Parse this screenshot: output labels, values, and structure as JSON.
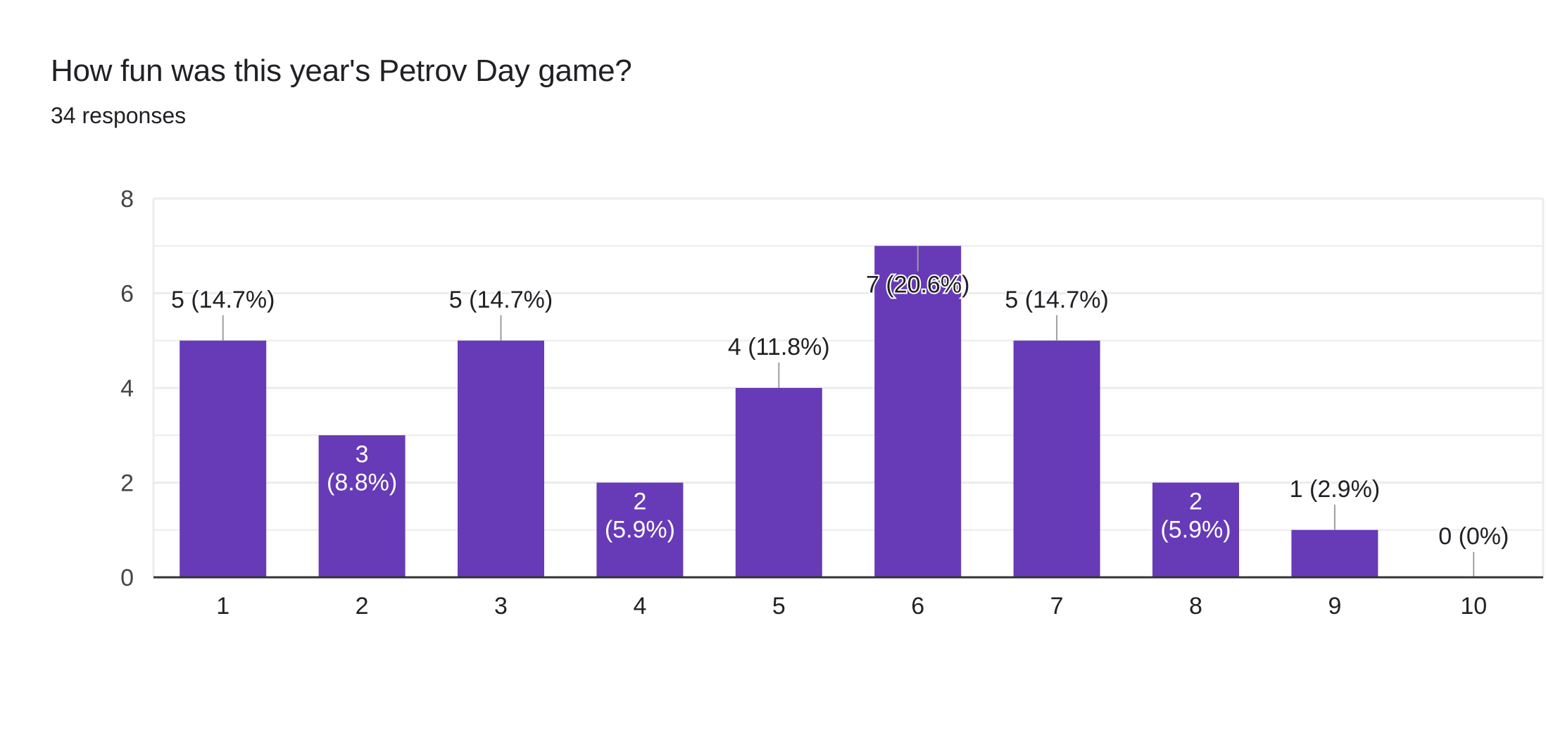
{
  "header": {
    "title": "How fun was this year's Petrov Day game?",
    "subtitle": "34 responses"
  },
  "colors": {
    "bar": "#673ab7",
    "grid": "#ececec",
    "axis": "#333333",
    "leader": "#9e9e9e"
  },
  "chart_data": {
    "type": "bar",
    "title": "How fun was this year's Petrov Day game?",
    "subtitle": "34 responses",
    "xlabel": "",
    "ylabel": "",
    "categories": [
      "1",
      "2",
      "3",
      "4",
      "5",
      "6",
      "7",
      "8",
      "9",
      "10"
    ],
    "values": [
      5,
      3,
      5,
      2,
      4,
      7,
      5,
      2,
      1,
      0
    ],
    "percentages": [
      "14.7%",
      "8.8%",
      "14.7%",
      "5.9%",
      "11.8%",
      "20.6%",
      "14.7%",
      "5.9%",
      "2.9%",
      "0%"
    ],
    "data_labels": [
      "5 (14.7%)",
      "3 (8.8%)",
      "5 (14.7%)",
      "2 (5.9%)",
      "4 (11.8%)",
      "7 (20.6%)",
      "5 (14.7%)",
      "2 (5.9%)",
      "1 (2.9%)",
      "0 (0%)"
    ],
    "yticks": [
      0,
      2,
      4,
      6,
      8
    ],
    "ylim": [
      0,
      8
    ],
    "grid": true,
    "legend": "none"
  }
}
